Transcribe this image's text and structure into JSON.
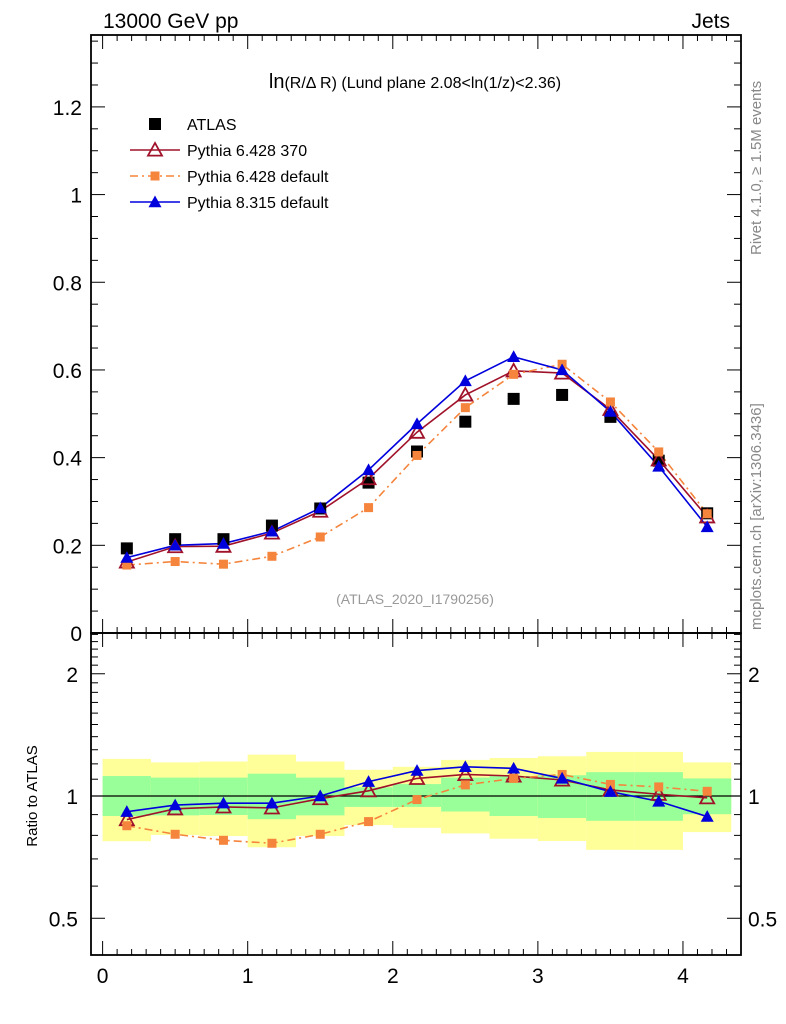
{
  "header": {
    "left": "13000 GeV pp",
    "right": "Jets"
  },
  "side_labels": {
    "rivet": "Rivet 4.1.0, ≥ 1.5M events",
    "mcplots": "mcplots.cern.ch [arXiv:1306.3436]"
  },
  "chart_data": [
    {
      "type": "line",
      "panel": "main",
      "title": "ln(R/Δ R) (Lund plane 2.08<ln(1/z)<2.36)",
      "title_prefix": "ln",
      "title_rest": "(R/Δ R) (Lund plane 2.08<ln(1/z)<2.36)",
      "watermark": "(ATLAS_2020_I1790256)",
      "xlabel": "",
      "ylabel": "",
      "xlim": [
        -0.08,
        4.4
      ],
      "ylim": [
        0,
        1.364
      ],
      "yticks": [
        0,
        0.2,
        0.4,
        0.6,
        0.8,
        1,
        1.2
      ],
      "ytick_labels": [
        "0",
        "0.2",
        "0.4",
        "0.6",
        "0.8",
        "1",
        "1.2"
      ],
      "grid": false,
      "legend_position": "top-left",
      "x": [
        0.167,
        0.5,
        0.833,
        1.167,
        1.5,
        1.833,
        2.167,
        2.5,
        2.833,
        3.167,
        3.5,
        3.833,
        4.167
      ],
      "series": [
        {
          "name": "ATLAS",
          "marker": "filled-square",
          "line": "none",
          "color": "#000000",
          "values": [
            0.193,
            0.214,
            0.214,
            0.245,
            0.284,
            0.343,
            0.414,
            0.482,
            0.534,
            0.543,
            0.493,
            0.393,
            0.273
          ]
        },
        {
          "name": "Pythia 6.428 370",
          "marker": "open-triangle",
          "line": "solid",
          "color": "#a0122a",
          "values": [
            0.162,
            0.197,
            0.198,
            0.228,
            0.278,
            0.352,
            0.458,
            0.543,
            0.598,
            0.593,
            0.51,
            0.395,
            0.265
          ]
        },
        {
          "name": "Pythia 6.428 default",
          "marker": "filled-square-small",
          "line": "dash-dot",
          "color": "#f5843c",
          "values": [
            0.155,
            0.163,
            0.157,
            0.175,
            0.219,
            0.286,
            0.405,
            0.514,
            0.59,
            0.613,
            0.527,
            0.413,
            0.272
          ]
        },
        {
          "name": "Pythia 8.315 default",
          "marker": "filled-triangle",
          "line": "solid",
          "color": "#0000dd",
          "values": [
            0.172,
            0.2,
            0.204,
            0.232,
            0.285,
            0.372,
            0.477,
            0.575,
            0.63,
            0.6,
            0.505,
            0.38,
            0.242
          ]
        }
      ]
    },
    {
      "type": "line",
      "panel": "ratio",
      "ylabel": "Ratio to ATLAS",
      "yscale": "log",
      "ylim": [
        0.406,
        2.52
      ],
      "yticks": [
        0.5,
        1,
        2
      ],
      "ytick_labels": [
        "0.5",
        "1",
        "2"
      ],
      "xlim": [
        -0.08,
        4.4
      ],
      "xticks": [
        0,
        1,
        2,
        3,
        4
      ],
      "xtick_labels": [
        "0",
        "1",
        "2",
        "3",
        "4"
      ],
      "bin_edges": [
        0,
        0.333,
        0.667,
        1.0,
        1.333,
        1.667,
        2.0,
        2.333,
        2.667,
        3.0,
        3.333,
        3.667,
        4.0,
        4.333
      ],
      "band_inner": {
        "color": "#99ff99",
        "lower": [
          0.893,
          0.896,
          0.898,
          0.877,
          0.896,
          0.94,
          0.94,
          0.916,
          0.893,
          0.883,
          0.869,
          0.869,
          0.902
        ],
        "upper": [
          1.12,
          1.11,
          1.11,
          1.135,
          1.11,
          1.0507,
          1.07,
          1.11,
          1.12,
          1.125,
          1.145,
          1.145,
          1.105
        ]
      },
      "band_outer": {
        "color": "#ffff99",
        "lower": [
          0.774,
          0.802,
          0.797,
          0.748,
          0.797,
          0.848,
          0.835,
          0.809,
          0.785,
          0.775,
          0.737,
          0.737,
          0.815
        ],
        "upper": [
          1.234,
          1.21,
          1.216,
          1.264,
          1.216,
          1.16,
          1.18,
          1.227,
          1.24,
          1.253,
          1.284,
          1.284,
          1.21
        ]
      },
      "reference_line": 1,
      "x": [
        0.167,
        0.5,
        0.833,
        1.167,
        1.5,
        1.833,
        2.167,
        2.5,
        2.833,
        3.167,
        3.5,
        3.833,
        4.167
      ],
      "series": [
        {
          "name": "Pythia 6.428 370",
          "marker": "open-triangle",
          "line": "solid",
          "color": "#a0122a",
          "values": [
            0.875,
            0.93,
            0.94,
            0.935,
            0.985,
            1.03,
            1.105,
            1.13,
            1.12,
            1.095,
            1.035,
            1.01,
            0.99
          ]
        },
        {
          "name": "Pythia 6.428 default",
          "marker": "filled-square-small",
          "line": "dash-dot",
          "color": "#f5843c",
          "values": [
            0.845,
            0.805,
            0.778,
            0.765,
            0.805,
            0.865,
            0.98,
            1.065,
            1.105,
            1.13,
            1.068,
            1.053,
            1.027
          ]
        },
        {
          "name": "Pythia 8.315 default",
          "marker": "filled-triangle",
          "line": "solid",
          "color": "#0000dd",
          "values": [
            0.915,
            0.95,
            0.96,
            0.96,
            1.0,
            1.085,
            1.155,
            1.18,
            1.17,
            1.105,
            1.025,
            0.97,
            0.89
          ]
        }
      ]
    }
  ]
}
